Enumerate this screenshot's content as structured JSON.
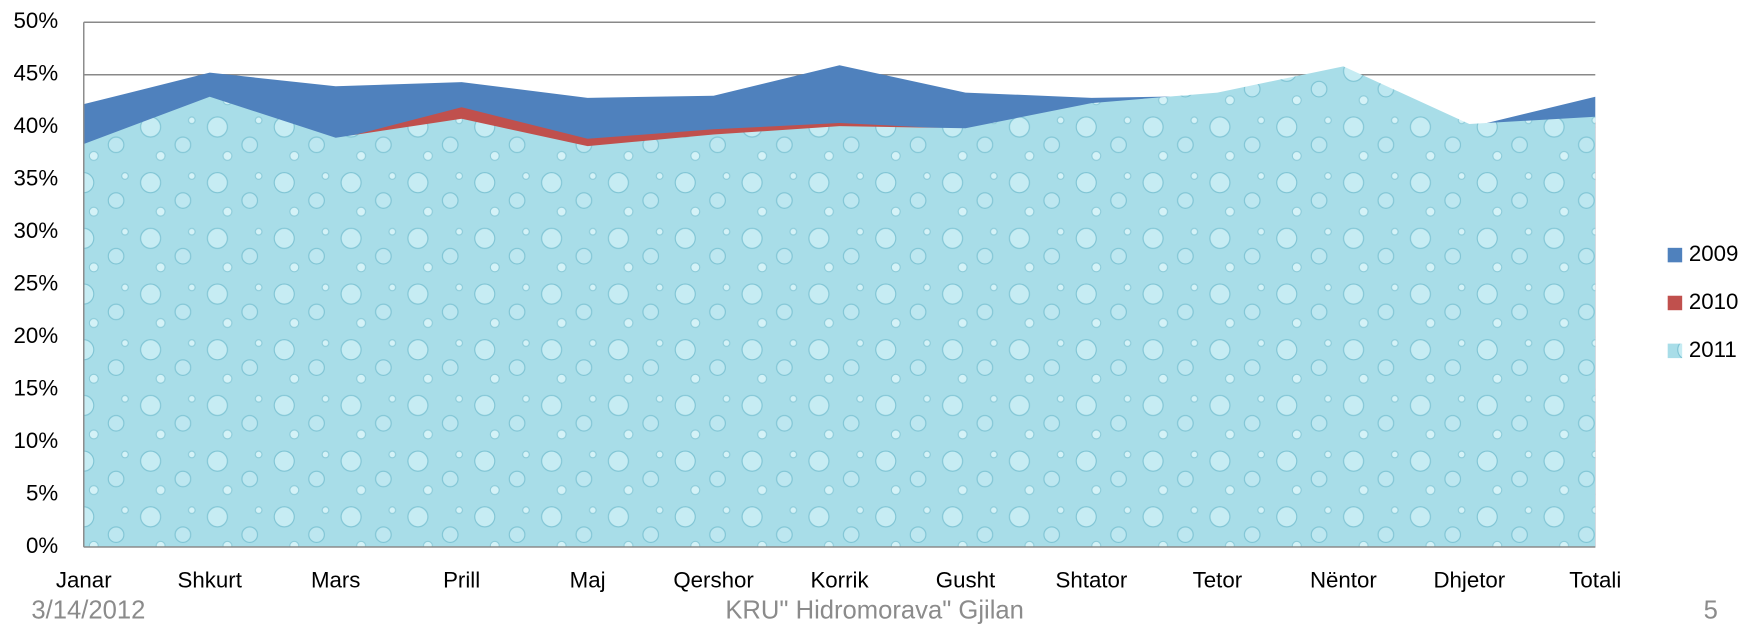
{
  "chart_data": {
    "type": "area",
    "categories": [
      "Janar",
      "Shkurt",
      "Mars",
      "Prill",
      "Maj",
      "Qershor",
      "Korrik",
      "Gusht",
      "Shtator",
      "Tetor",
      "Nëntor",
      "Dhjetor",
      "Totali"
    ],
    "series": [
      {
        "name": "2009",
        "color": "#4f81bd",
        "values": [
          42.2,
          45.2,
          43.9,
          44.3,
          42.8,
          43.0,
          45.9,
          43.3,
          42.8,
          43.0,
          45.0,
          40.0,
          42.9
        ]
      },
      {
        "name": "2010",
        "color": "#c0504d",
        "values": [
          38.0,
          42.0,
          38.8,
          41.9,
          38.9,
          39.8,
          40.4,
          39.8,
          41.0,
          42.0,
          44.0,
          39.5,
          40.5
        ]
      },
      {
        "name": "2011",
        "color": "#a8dde8",
        "values": [
          38.4,
          42.9,
          39.0,
          40.8,
          38.2,
          39.3,
          40.1,
          39.9,
          42.3,
          43.3,
          45.8,
          40.3,
          41.0
        ]
      }
    ],
    "ylim": [
      0,
      50
    ],
    "yticks": [
      {
        "value": 0,
        "label": "0%"
      },
      {
        "value": 5,
        "label": "5%"
      },
      {
        "value": 10,
        "label": "10%"
      },
      {
        "value": 15,
        "label": "15%"
      },
      {
        "value": 20,
        "label": "20%"
      },
      {
        "value": 25,
        "label": "25%"
      },
      {
        "value": 30,
        "label": "30%"
      },
      {
        "value": 35,
        "label": "35%"
      },
      {
        "value": 40,
        "label": "40%"
      },
      {
        "value": 45,
        "label": "45%"
      },
      {
        "value": 50,
        "label": "50%"
      }
    ],
    "grid": true,
    "legend": "right"
  },
  "footer": {
    "date": "3/14/2012",
    "center": "KRU\" Hidromorava\" Gjilan",
    "page": "5"
  }
}
